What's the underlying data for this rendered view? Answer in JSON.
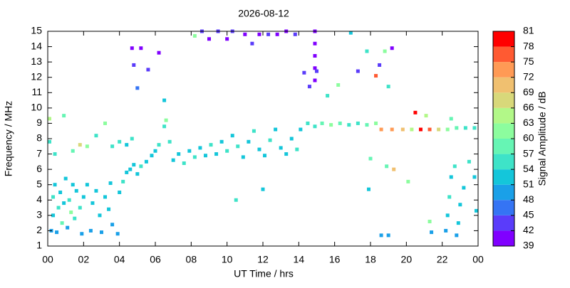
{
  "chart_data": {
    "type": "scatter",
    "title": "2026-08-12",
    "xlabel": "UT Time / hrs",
    "ylabel": "Frequency / MHz",
    "xlim": [
      0,
      24
    ],
    "xticks": [
      {
        "value": 0,
        "label": "00"
      },
      {
        "value": 2,
        "label": "02"
      },
      {
        "value": 4,
        "label": "04"
      },
      {
        "value": 6,
        "label": "06"
      },
      {
        "value": 8,
        "label": "08"
      },
      10,
      12,
      14,
      16,
      18,
      20,
      22,
      {
        "value": 24,
        "label": "00"
      }
    ],
    "ylim": [
      1,
      15
    ],
    "yticks": [
      1,
      2,
      3,
      4,
      5,
      6,
      7,
      8,
      9,
      10,
      11,
      12,
      13,
      14,
      15
    ],
    "x": [
      0.2,
      0.3,
      0.3,
      0.4,
      0.5,
      0.6,
      0.7,
      0.8,
      0.9,
      1.0,
      1.1,
      1.2,
      1.3,
      1.4,
      1.5,
      1.6,
      1.8,
      1.9,
      2.0,
      2.2,
      2.4,
      2.5,
      2.7,
      2.9,
      3.0,
      3.2,
      3.4,
      3.5,
      3.6,
      3.9,
      4.0,
      4.2,
      4.4,
      4.6,
      4.8,
      5.0,
      5.2,
      5.5,
      5.8,
      6.0,
      6.2,
      0.1,
      0.1,
      0.4,
      0.9,
      1.4,
      1.8,
      2.2,
      2.7,
      3.2,
      3.6,
      4.0,
      4.4,
      4.7,
      6.5,
      6.6,
      6.8,
      7.0,
      7.3,
      7.6,
      7.9,
      8.2,
      8.5,
      8.8,
      9.1,
      9.4,
      9.7,
      10.0,
      10.3,
      10.6,
      10.9,
      11.2,
      11.5,
      11.8,
      12.1,
      12.4,
      12.7,
      13.0,
      13.3,
      13.6,
      13.9,
      14.1,
      14.5,
      14.9,
      15.3,
      15.8,
      16.3,
      16.8,
      17.3,
      17.8,
      18.3,
      18.6,
      19.2,
      19.8,
      20.3,
      20.8,
      21.3,
      21.8,
      22.3,
      22.8,
      23.3,
      23.8,
      20.5,
      4.7,
      4.8,
      5.0,
      5.2,
      5.6,
      6.2,
      8.2,
      8.6,
      9.0,
      9.5,
      10.0,
      10.3,
      11.0,
      11.4,
      11.8,
      12.3,
      12.8,
      13.3,
      13.8,
      14.3,
      14.6,
      14.9,
      14.9,
      14.9,
      14.9,
      14.9,
      15.0,
      15.6,
      16.2,
      16.9,
      17.3,
      17.8,
      18.3,
      18.5,
      18.8,
      19.0,
      19.2,
      22.2,
      22.3,
      22.4,
      22.5,
      22.7,
      22.9,
      23.0,
      23.2,
      23.5,
      23.8,
      23.9,
      22.8,
      21.4,
      21.3,
      19.0,
      18.6,
      20.1,
      18.9,
      18.0,
      19.3,
      17.9,
      12.0,
      10.5,
      6.5,
      21.1,
      22.5
    ],
    "values": [
      2.0,
      3.0,
      4.2,
      5.0,
      1.9,
      3.5,
      4.5,
      2.5,
      3.8,
      5.4,
      2.2,
      4.0,
      3.2,
      5.0,
      2.8,
      4.6,
      3.5,
      1.8,
      4.2,
      5.0,
      2.0,
      3.8,
      4.6,
      3.0,
      1.9,
      4.2,
      3.4,
      5.1,
      2.4,
      1.8,
      4.5,
      5.2,
      5.8,
      6.0,
      6.3,
      5.7,
      6.2,
      6.5,
      6.9,
      7.2,
      7.6,
      7.8,
      9.3,
      7.0,
      9.5,
      7.2,
      7.6,
      7.5,
      8.2,
      9.0,
      7.5,
      7.8,
      7.6,
      8.0,
      8.8,
      9.2,
      7.8,
      6.6,
      7.0,
      6.4,
      7.2,
      6.8,
      7.4,
      6.9,
      7.6,
      7.0,
      7.8,
      7.2,
      8.2,
      7.5,
      6.8,
      7.8,
      8.5,
      7.3,
      6.9,
      7.9,
      8.6,
      7.4,
      7.0,
      8.0,
      7.3,
      8.6,
      9.0,
      8.8,
      9.0,
      8.9,
      9.0,
      8.9,
      9.0,
      8.9,
      9.0,
      8.6,
      8.6,
      8.6,
      8.6,
      8.6,
      8.6,
      8.6,
      8.6,
      8.7,
      8.7,
      8.7,
      9.7,
      13.9,
      12.8,
      11.3,
      13.9,
      12.5,
      13.6,
      14.7,
      15.0,
      14.5,
      15.0,
      14.5,
      15.0,
      14.8,
      14.2,
      14.8,
      14.8,
      14.8,
      15.0,
      14.8,
      12.3,
      11.4,
      15.0,
      14.2,
      13.4,
      12.6,
      11.8,
      12.4,
      10.8,
      11.5,
      14.9,
      12.4,
      13.7,
      12.1,
      12.8,
      13.7,
      11.4,
      13.9,
      2.0,
      3.0,
      4.2,
      5.5,
      6.2,
      2.5,
      3.7,
      4.8,
      6.5,
      5.5,
      3.3,
      1.7,
      1.9,
      2.6,
      1.7,
      1.7,
      5.2,
      6.2,
      6.7,
      6.0,
      4.7,
      4.7,
      4.0,
      10.5,
      9.5,
      9.3
    ],
    "amplitude": [
      50,
      53,
      54,
      52,
      49,
      55,
      53,
      57,
      52,
      51,
      50,
      54,
      60,
      53,
      56,
      52,
      54,
      49,
      53,
      52,
      50,
      53,
      52,
      51,
      49,
      53,
      52,
      53,
      50,
      48,
      53,
      54,
      53,
      52,
      53,
      52,
      54,
      53,
      52,
      53,
      55,
      56,
      64,
      55,
      58,
      57,
      67,
      62,
      56,
      60,
      54,
      55,
      53,
      55,
      56,
      60,
      54,
      53,
      52,
      54,
      53,
      54,
      52,
      53,
      54,
      52,
      53,
      55,
      52,
      54,
      53,
      52,
      54,
      53,
      52,
      55,
      52,
      53,
      52,
      53,
      54,
      53,
      56,
      54,
      58,
      62,
      57,
      55,
      56,
      57,
      60,
      72,
      74,
      70,
      64,
      78,
      75,
      66,
      62,
      58,
      55,
      56,
      80,
      41,
      42,
      47,
      40,
      44,
      40,
      60,
      42,
      40,
      43,
      41,
      44,
      40,
      42,
      41,
      42,
      40,
      41,
      43,
      42,
      44,
      40,
      40,
      41,
      40,
      41,
      44,
      55,
      60,
      53,
      42,
      55,
      75,
      42,
      60,
      54,
      41,
      50,
      53,
      54,
      52,
      55,
      52,
      53,
      52,
      54,
      53,
      52,
      48,
      50,
      62,
      50,
      49,
      60,
      58,
      57,
      70,
      52,
      52,
      56,
      52,
      63,
      58
    ],
    "colorbar": {
      "label": "Signal Amplitude / dB",
      "lim": [
        39,
        81
      ],
      "ticks": [
        39,
        42,
        45,
        48,
        51,
        54,
        57,
        60,
        63,
        66,
        69,
        72,
        75,
        78,
        81
      ],
      "colors": [
        "#8000ff",
        "#5a3cfa",
        "#3574f4",
        "#1aa0e8",
        "#14c6da",
        "#3ee3c8",
        "#66f5b4",
        "#8cfd9e",
        "#b2f888",
        "#d8d87a",
        "#f0c070",
        "#ff9a55",
        "#ff5a32",
        "#ff0000"
      ]
    }
  }
}
